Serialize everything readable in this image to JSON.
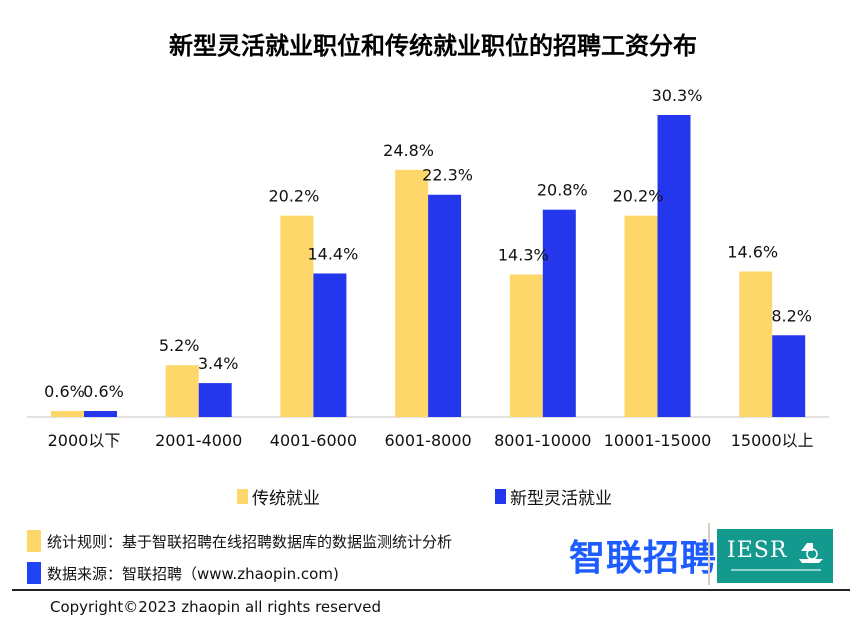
{
  "title": "新型灵活就业职位和传统就业职位的招聘工资分布",
  "colors": {
    "traditional": "#fdd76a",
    "flexible": "#2437ec",
    "axis": "#d9d9d9",
    "zhaopin_brand": "#1d5cff",
    "iesr_bg": "#14998f"
  },
  "chart_data": {
    "type": "bar",
    "title": "新型灵活就业职位和传统就业职位的招聘工资分布",
    "xlabel": "",
    "ylabel": "",
    "categories": [
      "2000以下",
      "2001-4000",
      "4001-6000",
      "6001-8000",
      "8001-10000",
      "10001-15000",
      "15000以上"
    ],
    "series": [
      {
        "name": "传统就业",
        "values": [
          0.6,
          5.2,
          20.2,
          24.8,
          14.3,
          20.2,
          14.6
        ],
        "labels": [
          "0.6%",
          "5.2%",
          "20.2%",
          "24.8%",
          "14.3%",
          "20.2%",
          "14.6%"
        ]
      },
      {
        "name": "新型灵活就业",
        "values": [
          0.6,
          3.4,
          14.4,
          22.3,
          20.8,
          30.3,
          8.2
        ],
        "labels": [
          "0.6%",
          "3.4%",
          "14.4%",
          "22.3%",
          "20.8%",
          "30.3%",
          "8.2%"
        ]
      }
    ],
    "ylim": [
      0,
      30.3
    ],
    "grid": false,
    "legend_position": "bottom"
  },
  "legend": {
    "traditional": "传统就业",
    "flexible": "新型灵活就业"
  },
  "notes": {
    "rule": "统计规则：基于智联招聘在线招聘数据库的数据监测统计分析",
    "source": "数据来源：智联招聘（www.zhaopin.com)"
  },
  "logos": {
    "zhaopin": "智联招聘",
    "iesr": "IESR"
  },
  "copyright": "Copyright©2023 zhaopin all rights reserved"
}
